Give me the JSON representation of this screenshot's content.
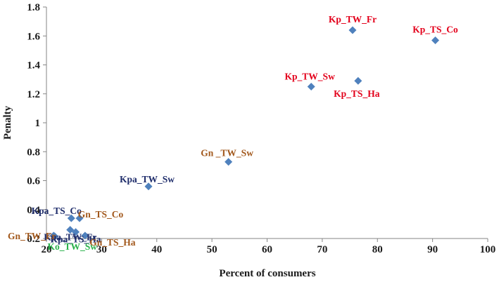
{
  "chart_data": {
    "type": "scatter",
    "xlabel": "Percent of consumers",
    "ylabel": "Penalty",
    "xlim": [
      20,
      100
    ],
    "ylim": [
      0.2,
      1.8
    ],
    "xticks": [
      "20",
      "30",
      "40",
      "50",
      "60",
      "70",
      "80",
      "90",
      "100"
    ],
    "yticks": [
      "0.2",
      "0.4",
      "0.6",
      "0.8",
      "1",
      "1.2",
      "1.4",
      "1.6",
      "1.8"
    ],
    "colors": {
      "marker": "#4f81bd",
      "Kp": "#e3001b",
      "Kpa": "#1f2d6b",
      "Gn": "#a2581c",
      "Ko": "#2bb24c"
    },
    "points": [
      {
        "label": "Kp_TW_Fr",
        "x": 75.5,
        "y": 1.64,
        "group": "Kp"
      },
      {
        "label": "Kp_TS_Co",
        "x": 90.5,
        "y": 1.57,
        "group": "Kp"
      },
      {
        "label": "Kp_TS_Ha",
        "x": 76.5,
        "y": 1.29,
        "group": "Kp"
      },
      {
        "label": "Kp_TW_Sw",
        "x": 68.0,
        "y": 1.25,
        "group": "Kp"
      },
      {
        "label": "Gn _TW_Sw",
        "x": 53.0,
        "y": 0.73,
        "group": "Gn"
      },
      {
        "label": "Kpa_TW_Sw",
        "x": 38.5,
        "y": 0.56,
        "group": "Kpa"
      },
      {
        "label": "Kpa_TS_Co",
        "x": 24.5,
        "y": 0.34,
        "group": "Kpa"
      },
      {
        "label": "Gn_TS_Co",
        "x": 26.0,
        "y": 0.34,
        "group": "Gn"
      },
      {
        "label": "Kpa_TW_Fr",
        "x": 24.3,
        "y": 0.26,
        "group": "Kpa"
      },
      {
        "label": "Kpa_TS_Ha",
        "x": 25.3,
        "y": 0.245,
        "group": "Kpa"
      },
      {
        "label": "Gn_TS_Ha",
        "x": 27.0,
        "y": 0.22,
        "group": "Gn"
      },
      {
        "label": "Gn_TW_Fr",
        "x": 21.3,
        "y": 0.22,
        "group": "Gn"
      },
      {
        "label": "Ko_TW_Sw",
        "x": 21.5,
        "y": 0.215,
        "group": "Ko"
      }
    ]
  }
}
